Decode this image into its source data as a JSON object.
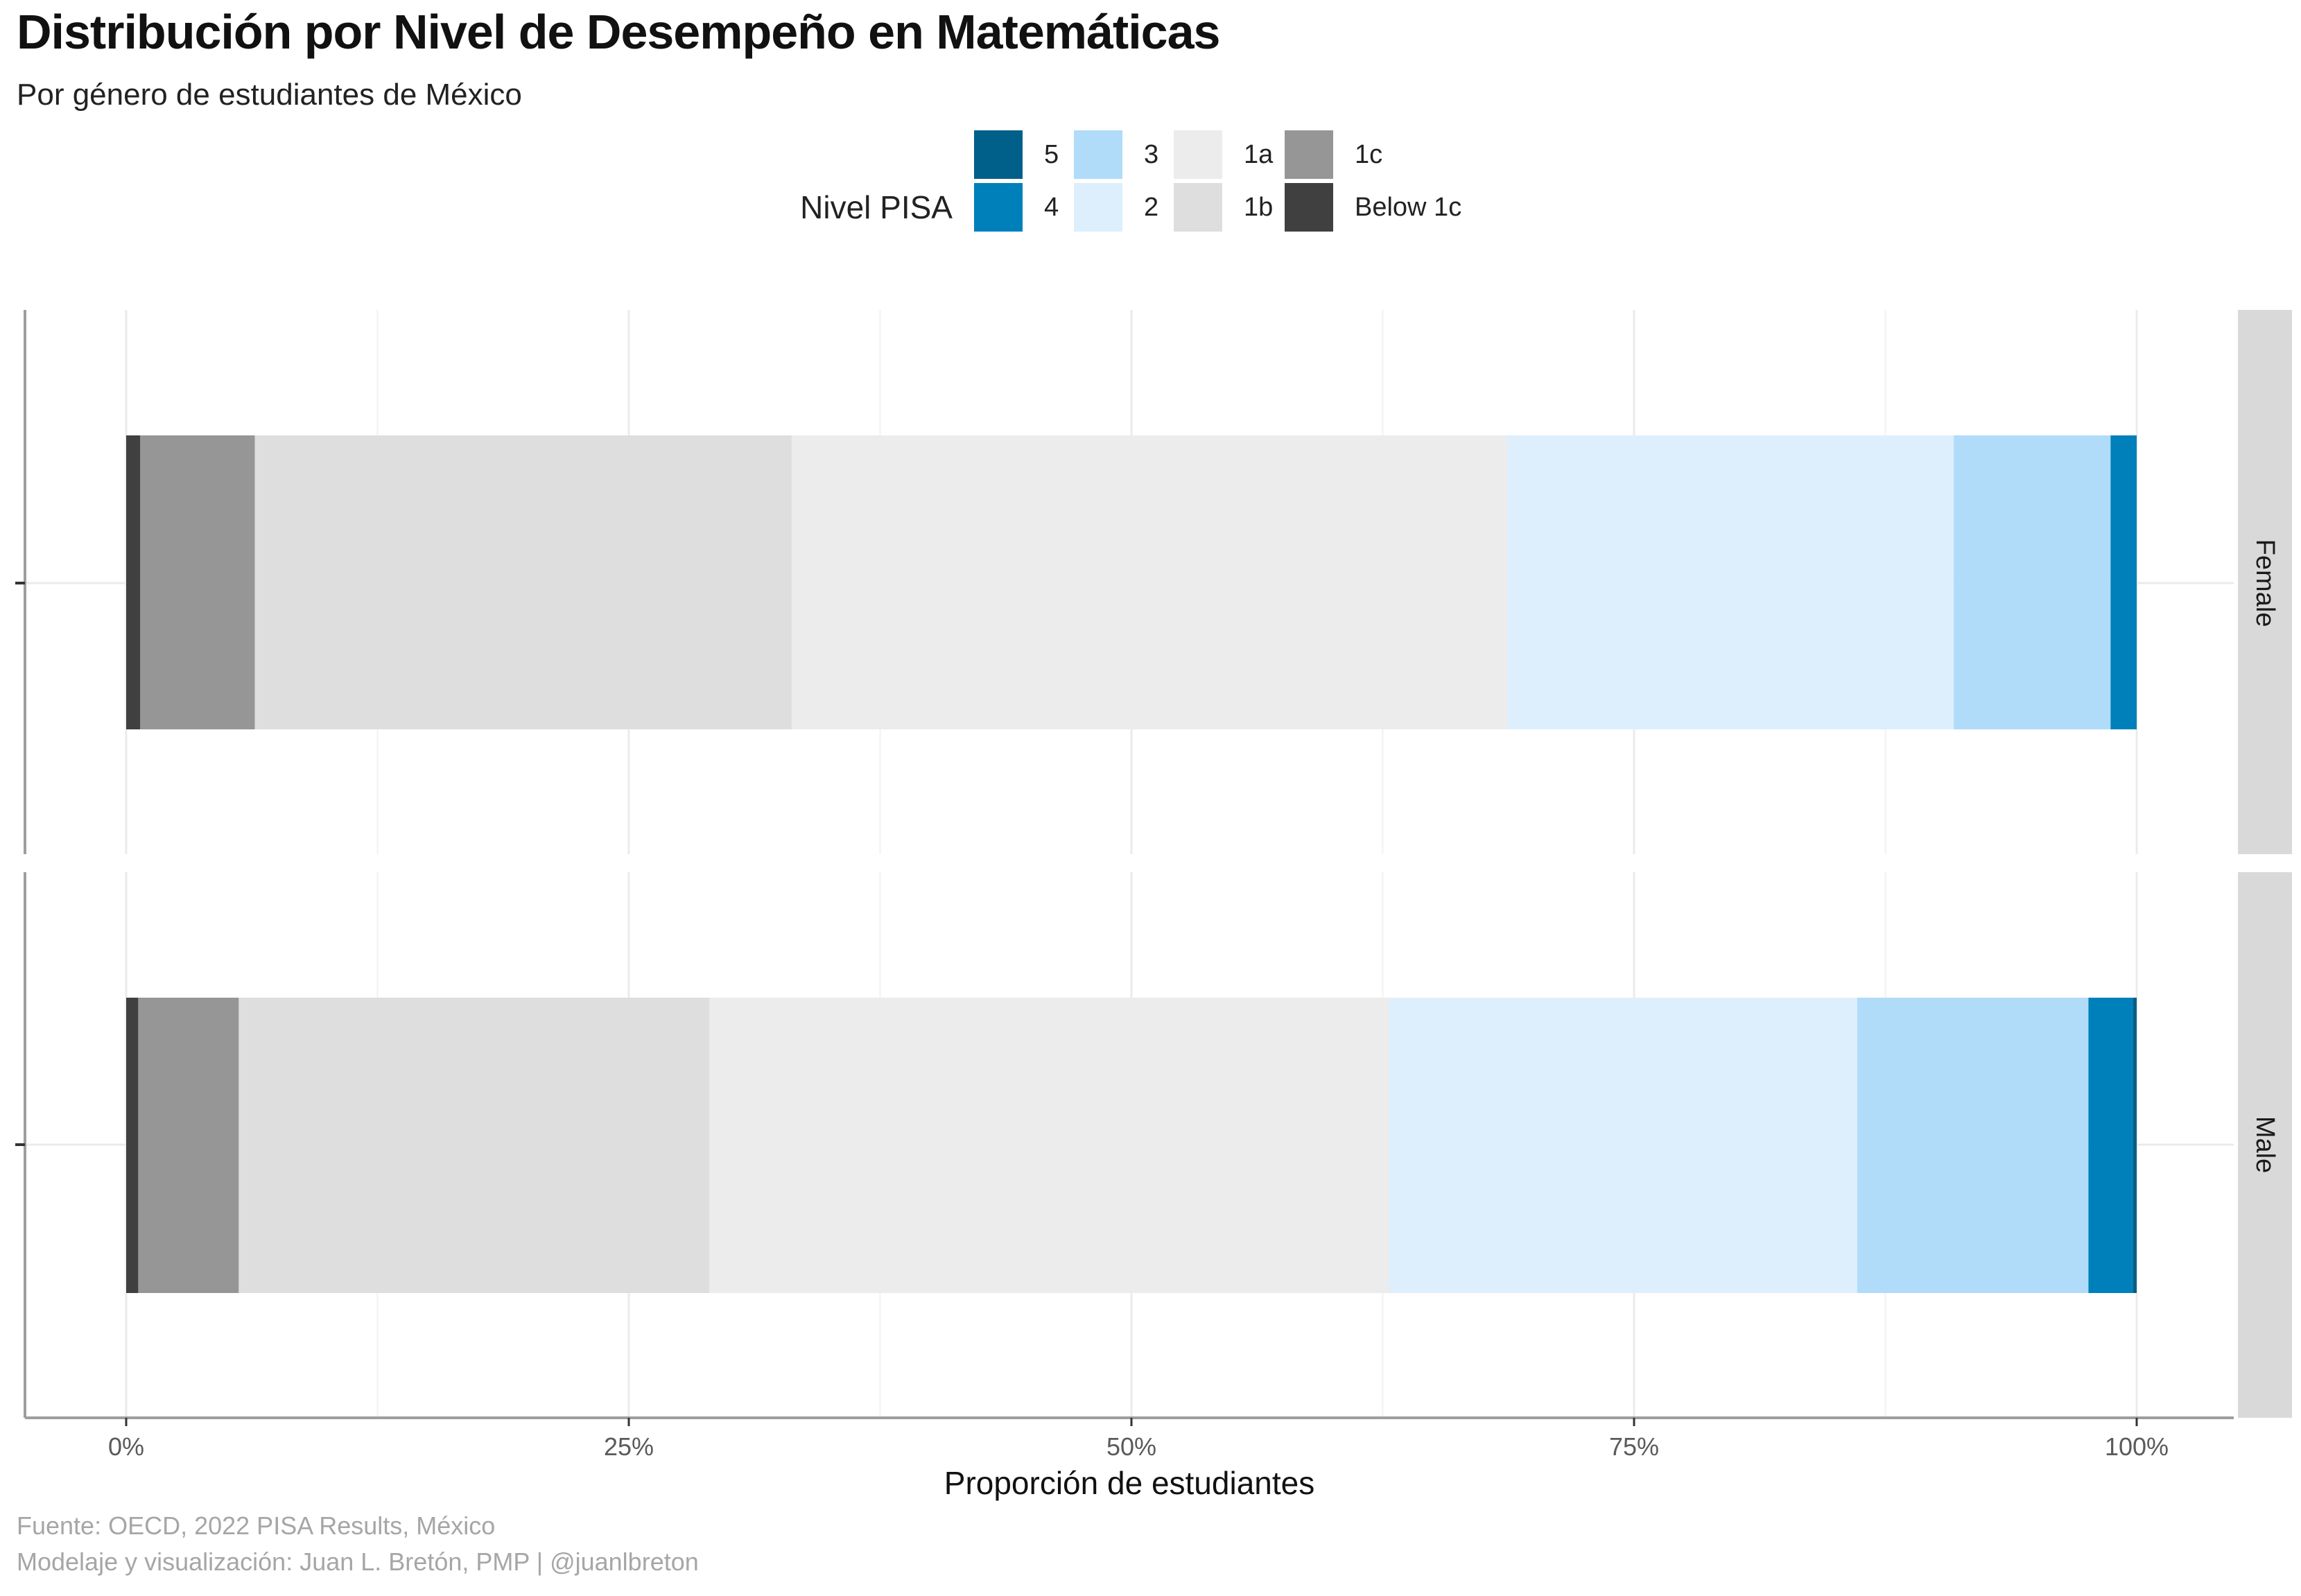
{
  "header": {
    "title": "Distribución por Nivel de Desempeño en Matemáticas",
    "subtitle": "Por género de estudiantes de México"
  },
  "caption": {
    "line1": "Fuente: OECD, 2022 PISA Results, México",
    "line2": "Modelaje y visualización: Juan L. Bretón, PMP | @juanlbreton"
  },
  "chart_data": {
    "type": "bar",
    "orientation": "horizontal",
    "stacked": "percent",
    "facets": [
      "Female",
      "Male"
    ],
    "xlabel": "Proporción de estudiantes",
    "ylabel": "",
    "xlim": [
      0,
      1
    ],
    "x_ticks": [
      0,
      0.25,
      0.5,
      0.75,
      1
    ],
    "x_tick_labels": [
      "0%",
      "25%",
      "50%",
      "75%",
      "100%"
    ],
    "grid": true,
    "legend": {
      "title": "Nivel PISA",
      "position": "top",
      "entries": [
        "5",
        "4",
        "3",
        "2",
        "1a",
        "1b",
        "1c",
        "Below 1c"
      ]
    },
    "series": [
      {
        "name": "Below 1c",
        "color": "#404040",
        "values": [
          0.007,
          0.006
        ]
      },
      {
        "name": "1c",
        "color": "#969696",
        "values": [
          0.057,
          0.05
        ]
      },
      {
        "name": "1b",
        "color": "#dedede",
        "values": [
          0.267,
          0.234
        ]
      },
      {
        "name": "1a",
        "color": "#ececec",
        "values": [
          0.356,
          0.338
        ]
      },
      {
        "name": "2",
        "color": "#ddeffc",
        "values": [
          0.222,
          0.233
        ]
      },
      {
        "name": "3",
        "color": "#b0dcfa",
        "values": [
          0.078,
          0.115
        ]
      },
      {
        "name": "4",
        "color": "#0080bb",
        "values": [
          0.013,
          0.022
        ]
      },
      {
        "name": "5",
        "color": "#00608a",
        "values": [
          0.0,
          0.002
        ]
      }
    ]
  }
}
